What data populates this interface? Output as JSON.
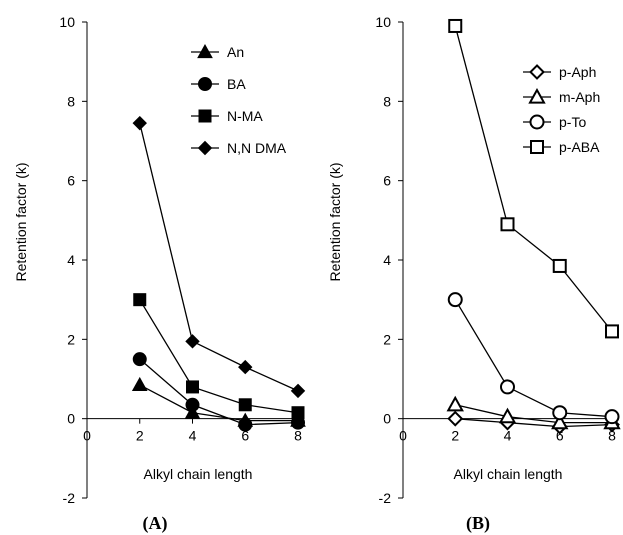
{
  "chart_data": [
    {
      "panel_label": "(A)",
      "type": "line",
      "xlabel": "Alkyl chain length",
      "ylabel": "Retention factor (k)",
      "xlim": [
        0,
        8
      ],
      "ylim": [
        -2,
        10
      ],
      "xticks": [
        "0",
        "2",
        "4",
        "6",
        "8"
      ],
      "yticks": [
        "-2",
        "0",
        "2",
        "4",
        "6",
        "8",
        "10"
      ],
      "x": [
        2,
        4,
        6,
        8
      ],
      "marker_style": "filled",
      "legend_position": "top-right",
      "series": [
        {
          "name": "An",
          "marker": "triangle",
          "values": [
            0.85,
            0.15,
            -0.05,
            -0.05
          ]
        },
        {
          "name": "BA",
          "marker": "circle",
          "values": [
            1.5,
            0.35,
            -0.15,
            -0.1
          ]
        },
        {
          "name": "N-MA",
          "marker": "square",
          "values": [
            3.0,
            0.8,
            0.35,
            0.15
          ]
        },
        {
          "name": "N,N DMA",
          "marker": "diamond",
          "values": [
            7.45,
            1.95,
            1.3,
            0.7
          ]
        }
      ]
    },
    {
      "panel_label": "(B)",
      "type": "line",
      "xlabel": "Alkyl chain length",
      "ylabel": "Retention factor (k)",
      "xlim": [
        0,
        8
      ],
      "ylim": [
        -2,
        10
      ],
      "xticks": [
        "0",
        "2",
        "4",
        "6",
        "8"
      ],
      "yticks": [
        "-2",
        "0",
        "2",
        "4",
        "6",
        "8",
        "10"
      ],
      "x": [
        2,
        4,
        6,
        8
      ],
      "marker_style": "open",
      "legend_position": "top-right",
      "series": [
        {
          "name": "p-Aph",
          "marker": "diamond",
          "values": [
            0.0,
            -0.1,
            -0.2,
            -0.15
          ]
        },
        {
          "name": "m-Aph",
          "marker": "triangle",
          "values": [
            0.35,
            0.05,
            -0.1,
            -0.1
          ]
        },
        {
          "name": "p-To",
          "marker": "circle",
          "values": [
            3.0,
            0.8,
            0.15,
            0.05
          ]
        },
        {
          "name": "p-ABA",
          "marker": "square",
          "values": [
            9.9,
            4.9,
            3.85,
            2.2
          ]
        }
      ]
    }
  ]
}
